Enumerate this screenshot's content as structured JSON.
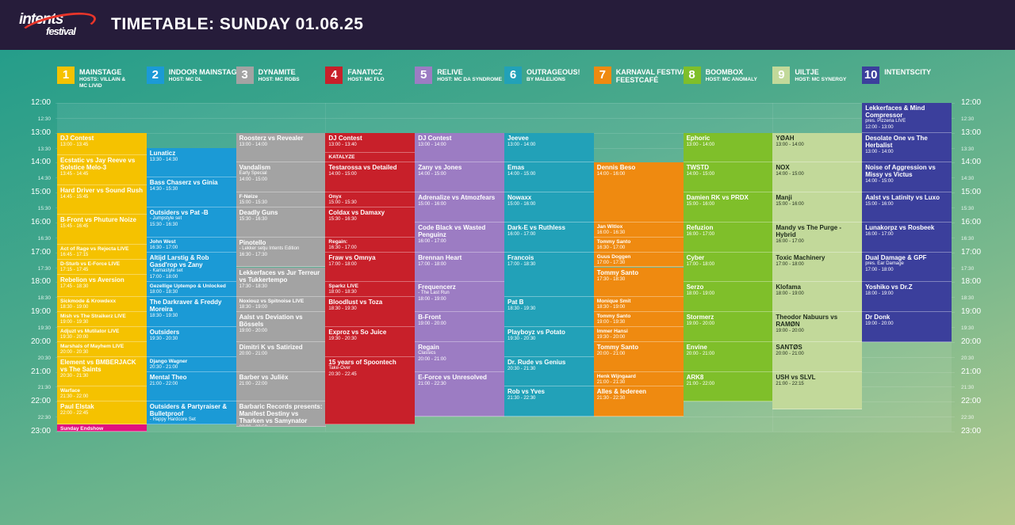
{
  "header": {
    "title": "TIMETABLE: SUNDAY 01.06.25",
    "logo_line1": "intents",
    "logo_line2": "festival"
  },
  "time_labels": [
    {
      "t": "12:00",
      "h": false
    },
    {
      "t": "12:30",
      "h": true
    },
    {
      "t": "13:00",
      "h": false
    },
    {
      "t": "13:30",
      "h": true
    },
    {
      "t": "14:00",
      "h": false
    },
    {
      "t": "14:30",
      "h": true
    },
    {
      "t": "15:00",
      "h": false
    },
    {
      "t": "15:30",
      "h": true
    },
    {
      "t": "16:00",
      "h": false
    },
    {
      "t": "16:30",
      "h": true
    },
    {
      "t": "17:00",
      "h": false
    },
    {
      "t": "17:30",
      "h": true
    },
    {
      "t": "18:00",
      "h": false
    },
    {
      "t": "18:30",
      "h": true
    },
    {
      "t": "19:00",
      "h": false
    },
    {
      "t": "19:30",
      "h": true
    },
    {
      "t": "20:00",
      "h": false
    },
    {
      "t": "20:30",
      "h": true
    },
    {
      "t": "21:00",
      "h": false
    },
    {
      "t": "21:30",
      "h": true
    },
    {
      "t": "22:00",
      "h": false
    },
    {
      "t": "22:30",
      "h": true
    },
    {
      "t": "23:00",
      "h": false
    }
  ],
  "stages": [
    {
      "num": "1",
      "name": "MAINSTAGE",
      "host": "HOSTS: VILLAIN &\nMC LIVID",
      "color": "#f5c200",
      "events": [
        {
          "t": "DJ Contest",
          "time": "13:00 - 13:45",
          "s": "13:00",
          "e": "13:45"
        },
        {
          "t": "Ecstatic vs Jay Reeve vs Solstice Melo-3",
          "time": "13:45 - 14:45",
          "s": "13:45",
          "e": "14:45"
        },
        {
          "t": "Hard Driver vs Sound Rush",
          "time": "14:45 - 15:45",
          "s": "14:45",
          "e": "15:45"
        },
        {
          "t": "B-Front vs Phuture Noize",
          "time": "15:45 - 16:45",
          "s": "15:45",
          "e": "16:45"
        },
        {
          "t": "Act of Rage vs Rejecta LIVE",
          "time": "16:45 - 17:15",
          "s": "16:45",
          "e": "17:15"
        },
        {
          "t": "D-Sturb vs E-Force LIVE",
          "time": "17:15 - 17:45",
          "s": "17:15",
          "e": "17:45"
        },
        {
          "t": "Rebelion vs Aversion",
          "time": "17:45 - 18:30",
          "s": "17:45",
          "e": "18:30"
        },
        {
          "t": "Sickmode & Krowdexx",
          "sub": "New Live Act",
          "time": "18:30 - 19:00",
          "s": "18:30",
          "e": "19:00"
        },
        {
          "t": "Mish vs The Straikerz LIVE",
          "time": "19:00 - 19:30",
          "s": "19:00",
          "e": "19:30"
        },
        {
          "t": "Adjuzt vs Mutilator LIVE",
          "time": "19:30 - 20:00",
          "s": "19:30",
          "e": "20:00"
        },
        {
          "t": "Marshals of Mayhem LIVE",
          "time": "20:00 - 20:30",
          "s": "20:00",
          "e": "20:30"
        },
        {
          "t": "Element vs BMBERJACK vs The Saints",
          "time": "20:30 - 21:30",
          "s": "20:30",
          "e": "21:30"
        },
        {
          "t": "Warface",
          "sub": "- Electric Dreams",
          "time": "21:30 - 22:00",
          "s": "21:30",
          "e": "22:00"
        },
        {
          "t": "Paul Elstak",
          "time": "22:00 - 22:45",
          "s": "22:00",
          "e": "22:45"
        },
        {
          "t": "Sunday Endshow",
          "time": "22:45 - 23:00",
          "s": "22:45",
          "e": "23:00",
          "c": "#e0117f"
        }
      ]
    },
    {
      "num": "2",
      "name": "INDOOR MAINSTAGE",
      "host": "HOST: MC DL",
      "color": "#1b9ad6",
      "events": [
        {
          "t": "Lunaticz",
          "time": "13:30 - 14:30",
          "s": "13:30",
          "e": "14:30"
        },
        {
          "t": "Bass Chaserz vs Ginia",
          "time": "14:30 - 15:30",
          "s": "14:30",
          "e": "15:30"
        },
        {
          "t": "Outsiders vs Pat -B",
          "sub": "- Jumpstyle set",
          "time": "15:30 - 16:30",
          "s": "15:30",
          "e": "16:30"
        },
        {
          "t": "John West",
          "time": "16:30 - 17:00",
          "s": "16:30",
          "e": "17:00"
        },
        {
          "t": "Altijd Larstig & Rob Gasd'rop vs Zany",
          "sub": "- Karnastyle set",
          "time": "17:00 - 18:00",
          "s": "17:00",
          "e": "18:00"
        },
        {
          "t": "Gezellige Uptempo & Unlocked",
          "sub": "pres. De Uptempolonaise",
          "time": "18:00 - 18:30",
          "s": "18:00",
          "e": "18:30"
        },
        {
          "t": "The Darkraver & Freddy Moreira",
          "time": "18:30 - 19:30",
          "s": "18:30",
          "e": "19:30"
        },
        {
          "t": "Outsiders",
          "time": "19:30 - 20:30",
          "s": "19:30",
          "e": "20:30"
        },
        {
          "t": "Django Wagner",
          "time": "20:30 - 21:00",
          "s": "20:30",
          "e": "21:00"
        },
        {
          "t": "Mental Theo",
          "time": "21:00 - 22:00",
          "s": "21:00",
          "e": "22:00"
        },
        {
          "t": "Outsiders & Partyraiser & Bulletproof",
          "sub": "- Happy Hardcore Set",
          "time": "22:00 - 22:45",
          "s": "22:00",
          "e": "22:45"
        }
      ]
    },
    {
      "num": "3",
      "name": "DYNAMITE",
      "host": "HOST: MC ROBS",
      "color": "#a3a3a3",
      "events": [
        {
          "t": "Roosterz vs Revealer",
          "time": "13:00 - 14:00",
          "s": "13:00",
          "e": "14:00"
        },
        {
          "t": "Vandalism",
          "sub": "Early Special",
          "time": "14:00 - 15:00",
          "s": "14:00",
          "e": "15:00"
        },
        {
          "t": "F-Nøize",
          "sub": "Early Uptempo LIVE",
          "time": "15:00 - 15:30",
          "s": "15:00",
          "e": "15:30"
        },
        {
          "t": "Deadly Guns",
          "time": "15:30 - 16:30",
          "s": "15:30",
          "e": "16:30"
        },
        {
          "t": "Pinotello",
          "sub": "- Lekker setju Intents Edition",
          "time": "16:30 - 17:30",
          "s": "16:30",
          "e": "17:30"
        },
        {
          "t": "Lekkerfaces vs Jur Terreur vs Tukkertempo",
          "time": "17:30 - 18:30",
          "s": "17:30",
          "e": "18:30"
        },
        {
          "t": "Noxiouz vs Spitnoise LIVE",
          "time": "18:30 - 19:00",
          "s": "18:30",
          "e": "19:00"
        },
        {
          "t": "Aalst vs Deviation vs Bössels",
          "time": "19:00 - 20:00",
          "s": "19:00",
          "e": "20:00"
        },
        {
          "t": "Dimitri K vs Satirized",
          "time": "20:00 - 21:00",
          "s": "20:00",
          "e": "21:00"
        },
        {
          "t": "Barber vs Juliëx",
          "time": "21:00 - 22:00",
          "s": "21:00",
          "e": "22:00"
        },
        {
          "t": "Barbaric Records presents: Manifest Destiny vs Tharken vs Samynator",
          "time": "22:00 - 22:50",
          "s": "22:00",
          "e": "22:50"
        }
      ]
    },
    {
      "num": "4",
      "name": "FANATICZ",
      "host": "HOST: MC FLO",
      "color": "#c8202a",
      "events": [
        {
          "t": "DJ Contest",
          "time": "13:00 - 13:40",
          "s": "13:00",
          "e": "13:40"
        },
        {
          "t": "KATALYZE",
          "time": "13:40 - 14:00",
          "s": "13:40",
          "e": "14:00"
        },
        {
          "t": "Testarossa vs Detailed",
          "time": "14:00 - 15:00",
          "s": "14:00",
          "e": "15:00"
        },
        {
          "t": "Onyx",
          "time": "15:00 - 15:30",
          "s": "15:00",
          "e": "15:30"
        },
        {
          "t": "Coldax vs Damaxy",
          "time": "15:30 - 16:30",
          "s": "15:30",
          "e": "16:30"
        },
        {
          "t": "Regain:",
          "sub": "Polish Punisher - Phase II",
          "time": "16:30 - 17:00",
          "s": "16:30",
          "e": "17:00"
        },
        {
          "t": "Fraw vs Omnya",
          "time": "17:00 - 18:00",
          "s": "17:00",
          "e": "18:00"
        },
        {
          "t": "Sparkz LIVE",
          "time": "18:00 - 18:30",
          "s": "18:00",
          "e": "18:30"
        },
        {
          "t": "Bloodlust vs Toza",
          "time": "18:30 - 19:30",
          "s": "18:30",
          "e": "19:30"
        },
        {
          "t": "Exproz vs So Juice",
          "time": "19:30 - 20:30",
          "s": "19:30",
          "e": "20:30"
        },
        {
          "t": "15 years of Spoontech",
          "sub": "Take-Over",
          "time": "20:30 - 22:45",
          "s": "20:30",
          "e": "22:45"
        }
      ]
    },
    {
      "num": "5",
      "name": "RELIVE",
      "host": "HOST: MC DA SYNDROME",
      "color": "#9c7cc3",
      "events": [
        {
          "t": "DJ Contest",
          "time": "13:00 - 14:00",
          "s": "13:00",
          "e": "14:00"
        },
        {
          "t": "Zany vs Jones",
          "time": "14:00 - 15:00",
          "s": "14:00",
          "e": "15:00"
        },
        {
          "t": "Adrenalize vs Atmozfears",
          "time": "15:00 - 16:00",
          "s": "15:00",
          "e": "16:00"
        },
        {
          "t": "Code Black vs Wasted Penguinz",
          "time": "16:00 - 17:00",
          "s": "16:00",
          "e": "17:00"
        },
        {
          "t": "Brennan Heart",
          "time": "17:00 - 18:00",
          "s": "17:00",
          "e": "18:00"
        },
        {
          "t": "Frequencerz",
          "sub": "- The Last Run",
          "time": "18:00 - 19:00",
          "s": "18:00",
          "e": "19:00"
        },
        {
          "t": "B-Front",
          "time": "19:00 - 20:00",
          "s": "19:00",
          "e": "20:00"
        },
        {
          "t": "Regain",
          "sub": "Classics",
          "time": "20:00 - 21:00",
          "s": "20:00",
          "e": "21:00"
        },
        {
          "t": "E-Force vs Unresolved",
          "time": "21:00 - 22:30",
          "s": "21:00",
          "e": "22:30"
        }
      ]
    },
    {
      "num": "6",
      "name": "OUTRAGEOUS!",
      "host": "BY MALELIONS",
      "color": "#22a1b8",
      "events": [
        {
          "t": "Jeevee",
          "time": "13:00 - 14:00",
          "s": "13:00",
          "e": "14:00"
        },
        {
          "t": "Emas",
          "time": "14:00 - 15:00",
          "s": "14:00",
          "e": "15:00"
        },
        {
          "t": "Nowaxx",
          "time": "15:00 - 16:00",
          "s": "15:00",
          "e": "16:00"
        },
        {
          "t": "Dark-E vs Ruthless",
          "time": "16:00 - 17:00",
          "s": "16:00",
          "e": "17:00"
        },
        {
          "t": "Francois",
          "time": "17:00 - 18:30",
          "s": "17:00",
          "e": "18:30"
        },
        {
          "t": "Pat B",
          "time": "18:30 - 19:30",
          "s": "18:30",
          "e": "19:30"
        },
        {
          "t": "Playboyz vs Potato",
          "time": "19:30 - 20:30",
          "s": "19:30",
          "e": "20:30"
        },
        {
          "t": "Dr. Rude vs Genius",
          "time": "20:30 - 21:30",
          "s": "20:30",
          "e": "21:30"
        },
        {
          "t": "Rob vs Yves",
          "time": "21:30 - 22:30",
          "s": "21:30",
          "e": "22:30"
        }
      ]
    },
    {
      "num": "7",
      "name": "KARNAVAL FESTIVAL\nFEESTCAFÉ",
      "host": "",
      "color": "#ef8a10",
      "events": [
        {
          "t": "Dennis Beso",
          "time": "14:00 - 16:00",
          "s": "14:00",
          "e": "16:00"
        },
        {
          "t": "Jan Witlox",
          "time": "16:00 - 16:30",
          "s": "16:00",
          "e": "16:30"
        },
        {
          "t": "Tommy Santo",
          "time": "16:30 - 17:00",
          "s": "16:30",
          "e": "17:00"
        },
        {
          "t": "Guus Doggen",
          "time": "17:00 - 17:30",
          "s": "17:00",
          "e": "17:30"
        },
        {
          "t": "Tommy Santo",
          "time": "17:30 - 18:30",
          "s": "17:30",
          "e": "18:30"
        },
        {
          "t": "Monique Smit",
          "time": "18:30 - 19:00",
          "s": "18:30",
          "e": "19:00"
        },
        {
          "t": "Tommy Santo",
          "time": "19:00 - 19:30",
          "s": "19:00",
          "e": "19:30"
        },
        {
          "t": "Immer Hansi",
          "time": "19:30 - 20:00",
          "s": "19:30",
          "e": "20:00"
        },
        {
          "t": "Tommy Santo",
          "time": "20:00 - 21:00",
          "s": "20:00",
          "e": "21:00"
        },
        {
          "t": "Henk Wijngaard",
          "time": "21:00 - 21:30",
          "s": "21:00",
          "e": "21:30"
        },
        {
          "t": "Alles & Iedereen",
          "time": "21:30 - 22:30",
          "s": "21:30",
          "e": "22:30"
        }
      ]
    },
    {
      "num": "8",
      "name": "BOOMBOX",
      "host": "HOST: MC ANOMALY",
      "color": "#7fbf2a",
      "events": [
        {
          "t": "Ephoric",
          "time": "13:00 - 14:00",
          "s": "13:00",
          "e": "14:00"
        },
        {
          "t": "TWSTD",
          "time": "14:00 - 15:00",
          "s": "14:00",
          "e": "15:00"
        },
        {
          "t": "Damien RK vs PRDX",
          "time": "15:00 - 16:00",
          "s": "15:00",
          "e": "16:00"
        },
        {
          "t": "Refuzion",
          "time": "16:00 - 17:00",
          "s": "16:00",
          "e": "17:00"
        },
        {
          "t": "Cyber",
          "time": "17:00 - 18:00",
          "s": "17:00",
          "e": "18:00"
        },
        {
          "t": "Serzo",
          "time": "18:00 - 19:00",
          "s": "18:00",
          "e": "19:00"
        },
        {
          "t": "Stormerz",
          "time": "19:00 - 20:00",
          "s": "19:00",
          "e": "20:00"
        },
        {
          "t": "Envine",
          "time": "20:00 - 21:00",
          "s": "20:00",
          "e": "21:00"
        },
        {
          "t": "ARK8",
          "time": "21:00 - 22:00",
          "s": "21:00",
          "e": "22:00"
        }
      ]
    },
    {
      "num": "9",
      "name": "UILTJE",
      "host": "HOST: MC SYNERGY",
      "color": "#c2d99a",
      "events": [
        {
          "t": "YØAH",
          "time": "13:00 - 14:00",
          "s": "13:00",
          "e": "14:00"
        },
        {
          "t": "NOX",
          "time": "14:00 - 15:00",
          "s": "14:00",
          "e": "15:00"
        },
        {
          "t": "Manji",
          "time": "15:00 - 16:00",
          "s": "15:00",
          "e": "16:00"
        },
        {
          "t": "Mandy vs The Purge - Hybrid",
          "time": "16:00 - 17:00",
          "s": "16:00",
          "e": "17:00"
        },
        {
          "t": "Toxic Machinery",
          "time": "17:00 - 18:00",
          "s": "17:00",
          "e": "18:00"
        },
        {
          "t": "Klofama",
          "time": "18:00 - 19:00",
          "s": "18:00",
          "e": "19:00"
        },
        {
          "t": "Theodor Nabuurs vs RAMØN",
          "time": "19:00 - 20:00",
          "s": "19:00",
          "e": "20:00"
        },
        {
          "t": "SANTØS",
          "time": "20:00 - 21:00",
          "s": "20:00",
          "e": "21:00"
        },
        {
          "t": "USH vs SLVL",
          "time": "21:00 - 22:15",
          "s": "21:00",
          "e": "22:15"
        }
      ]
    },
    {
      "num": "10",
      "name": "INTENTSCITY",
      "host": "",
      "color": "#3b3f9c",
      "events": [
        {
          "t": "Lekkerfaces & Mind Compressor",
          "sub": "pres. Pizzeria LIVE",
          "time": "12:00 - 13:00",
          "s": "12:00",
          "e": "13:00"
        },
        {
          "t": "Desolate One vs The Herbalist",
          "time": "13:00 - 14:00",
          "s": "13:00",
          "e": "14:00"
        },
        {
          "t": "Noise of Aggression vs Missy vs Victus",
          "time": "14:00 - 15:00",
          "s": "14:00",
          "e": "15:00"
        },
        {
          "t": "Aalst vs Latinity vs Luxo",
          "time": "15:00 - 16:00",
          "s": "15:00",
          "e": "16:00"
        },
        {
          "t": "Lunakorpz vs Rosbeek",
          "time": "16:00 - 17:00",
          "s": "16:00",
          "e": "17:00"
        },
        {
          "t": "Dual Damage & GPF",
          "sub": "pres. Ear Damage",
          "time": "17:00 - 18:00",
          "s": "17:00",
          "e": "18:00"
        },
        {
          "t": "Yoshiko vs Dr.Z",
          "time": "18:00 - 19:00",
          "s": "18:00",
          "e": "19:00"
        },
        {
          "t": "Dr Donk",
          "time": "19:00 - 20:00",
          "s": "19:00",
          "e": "20:00"
        }
      ]
    }
  ]
}
